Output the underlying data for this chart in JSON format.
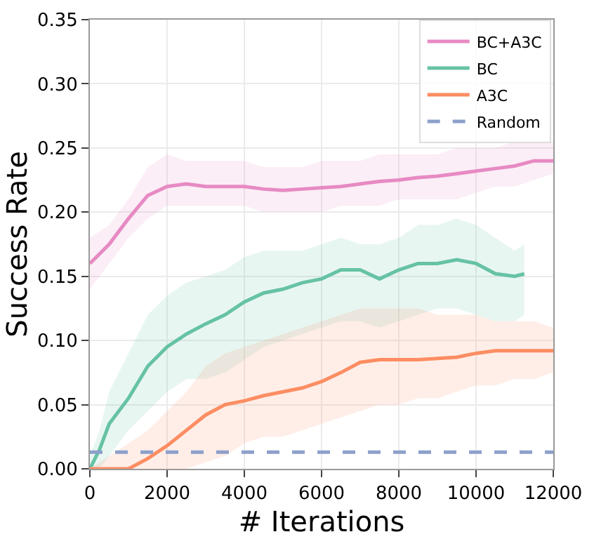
{
  "chart_data": {
    "type": "line",
    "xlabel": "# Iterations",
    "ylabel": "Success Rate",
    "xlim": [
      0,
      12000
    ],
    "xticks": [
      0,
      2000,
      4000,
      6000,
      8000,
      10000,
      12000
    ],
    "ylim": [
      0,
      0.35
    ],
    "yticks": [
      {
        "value": 0,
        "label": "0.00"
      },
      {
        "value": 0.05,
        "label": "0.05"
      },
      {
        "value": 0.1,
        "label": "0.10"
      },
      {
        "value": 0.15,
        "label": "0.15"
      },
      {
        "value": 0.2,
        "label": "0.20"
      },
      {
        "value": 0.25,
        "label": "0.25"
      },
      {
        "value": 0.3,
        "label": "0.30"
      },
      {
        "value": 0.35,
        "label": "0.35"
      }
    ],
    "grid": true,
    "legend": "top right",
    "marker": "none",
    "x": [
      0,
      500,
      1000,
      1500,
      2000,
      2500,
      3000,
      3500,
      4000,
      4500,
      5000,
      5500,
      6000,
      6500,
      7000,
      7500,
      8000,
      8500,
      9000,
      9500,
      10000,
      10500,
      11000,
      11500,
      12000
    ],
    "series": [
      {
        "name": "BC+A3C",
        "color": "#e78ac3",
        "line_style": "solid",
        "values": [
          0.16,
          0.175,
          0.195,
          0.213,
          0.22,
          0.222,
          0.22,
          0.22,
          0.22,
          0.218,
          0.217,
          0.218,
          0.219,
          0.22,
          0.222,
          0.224,
          0.225,
          0.227,
          0.228,
          0.23,
          0.232,
          0.234,
          0.236,
          0.24,
          0.24
        ],
        "lower": [
          0.14,
          0.16,
          0.18,
          0.195,
          0.205,
          0.205,
          0.205,
          0.205,
          0.205,
          0.2,
          0.2,
          0.2,
          0.2,
          0.205,
          0.205,
          0.205,
          0.21,
          0.21,
          0.21,
          0.21,
          0.215,
          0.22,
          0.22,
          0.225,
          0.23
        ],
        "upper": [
          0.18,
          0.19,
          0.21,
          0.235,
          0.245,
          0.24,
          0.24,
          0.24,
          0.24,
          0.235,
          0.235,
          0.235,
          0.24,
          0.24,
          0.24,
          0.245,
          0.245,
          0.245,
          0.245,
          0.25,
          0.25,
          0.25,
          0.255,
          0.255,
          0.255
        ]
      },
      {
        "name": "BC",
        "color": "#66c2a5",
        "line_style": "solid",
        "x": [
          0,
          250,
          500,
          1000,
          1500,
          2000,
          2500,
          3000,
          3500,
          4000,
          4500,
          5000,
          5500,
          6000,
          6500,
          7000,
          7500,
          8000,
          8500,
          9000,
          9500,
          10000,
          10500,
          11000,
          11250
        ],
        "values": [
          0,
          0.015,
          0.035,
          0.055,
          0.08,
          0.095,
          0.105,
          0.113,
          0.12,
          0.13,
          0.137,
          0.14,
          0.145,
          0.148,
          0.155,
          0.155,
          0.148,
          0.155,
          0.16,
          0.16,
          0.163,
          0.16,
          0.152,
          0.15,
          0.152
        ],
        "lower": [
          0,
          0,
          0.01,
          0.03,
          0.045,
          0.06,
          0.07,
          0.07,
          0.075,
          0.085,
          0.095,
          0.1,
          0.105,
          0.11,
          0.115,
          0.115,
          0.11,
          0.115,
          0.12,
          0.125,
          0.125,
          0.12,
          0.115,
          0.115,
          0.12
        ],
        "upper": [
          0.01,
          0.03,
          0.06,
          0.09,
          0.12,
          0.135,
          0.145,
          0.15,
          0.155,
          0.165,
          0.17,
          0.17,
          0.17,
          0.175,
          0.18,
          0.175,
          0.175,
          0.18,
          0.19,
          0.19,
          0.195,
          0.19,
          0.18,
          0.17,
          0.175
        ]
      },
      {
        "name": "A3C",
        "color": "#fc8d62",
        "line_style": "solid",
        "values": [
          0,
          0,
          0,
          0.008,
          0.018,
          0.03,
          0.042,
          0.05,
          0.053,
          0.057,
          0.06,
          0.063,
          0.068,
          0.075,
          0.083,
          0.085,
          0.085,
          0.085,
          0.086,
          0.087,
          0.09,
          0.092,
          0.092,
          0.092,
          0.092
        ],
        "lower": [
          0,
          0,
          0,
          0,
          0,
          0,
          0.005,
          0.01,
          0.02,
          0.025,
          0.025,
          0.03,
          0.035,
          0.04,
          0.045,
          0.05,
          0.05,
          0.055,
          0.055,
          0.06,
          0.065,
          0.065,
          0.07,
          0.07,
          0.075
        ],
        "upper": [
          0,
          0.01,
          0.02,
          0.03,
          0.045,
          0.06,
          0.08,
          0.09,
          0.095,
          0.1,
          0.105,
          0.11,
          0.115,
          0.12,
          0.125,
          0.125,
          0.125,
          0.125,
          0.12,
          0.12,
          0.12,
          0.115,
          0.115,
          0.115,
          0.11
        ]
      },
      {
        "name": "Random",
        "color": "#8da0cb",
        "line_style": "dashed",
        "x": [
          0,
          12000
        ],
        "values": [
          0.013,
          0.013
        ]
      }
    ]
  }
}
